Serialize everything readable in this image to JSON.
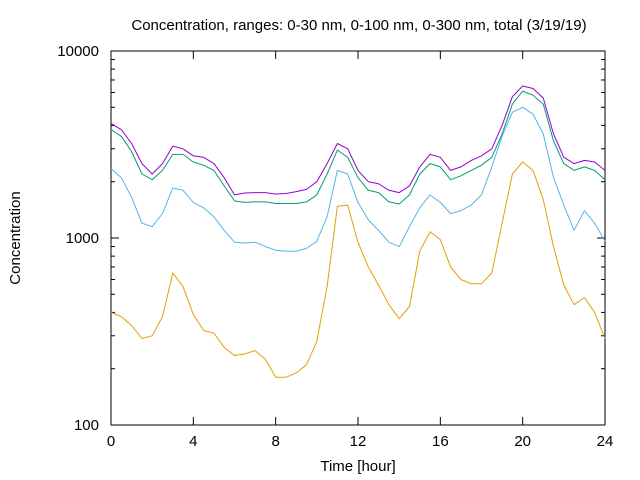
{
  "chart_data": {
    "type": "line",
    "title": "Concentration, ranges: 0-30 nm, 0-100 nm, 0-300 nm, total (3/19/19)",
    "xlabel": "Time [hour]",
    "ylabel": "Concentration",
    "xlim": [
      0,
      24
    ],
    "ylim": [
      100,
      10000
    ],
    "yscale": "log",
    "grid": false,
    "legend": "none",
    "x_ticks": [
      "0",
      "4",
      "8",
      "12",
      "16",
      "20",
      "24"
    ],
    "y_ticks": [
      "100",
      "1000",
      "10000"
    ],
    "x": [
      0,
      0.5,
      1,
      1.5,
      2,
      2.5,
      3,
      3.5,
      4,
      4.5,
      5,
      5.5,
      6,
      6.5,
      7,
      7.5,
      8,
      8.5,
      9,
      9.5,
      10,
      10.5,
      11,
      11.5,
      12,
      12.5,
      13,
      13.5,
      14,
      14.5,
      15,
      15.5,
      16,
      16.5,
      17,
      17.5,
      18,
      18.5,
      19,
      19.5,
      20,
      20.5,
      21,
      21.5,
      22,
      22.5,
      23,
      23.5,
      24
    ],
    "series": [
      {
        "color": "#e69f00",
        "values": [
          400,
          380,
          340,
          290,
          300,
          380,
          650,
          550,
          390,
          320,
          310,
          260,
          235,
          240,
          250,
          225,
          180,
          180,
          190,
          210,
          280,
          550,
          1480,
          1500,
          950,
          700,
          560,
          440,
          370,
          430,
          850,
          1080,
          980,
          700,
          600,
          570,
          570,
          650,
          1200,
          2200,
          2550,
          2300,
          1600,
          900,
          560,
          440,
          480,
          400,
          290
        ]
      },
      {
        "color": "#56b4e9",
        "values": [
          2350,
          2100,
          1650,
          1200,
          1150,
          1350,
          1850,
          1800,
          1550,
          1450,
          1300,
          1100,
          950,
          940,
          950,
          900,
          860,
          850,
          850,
          880,
          960,
          1300,
          2300,
          2200,
          1550,
          1250,
          1100,
          950,
          900,
          1150,
          1450,
          1700,
          1550,
          1350,
          1400,
          1500,
          1700,
          2400,
          3500,
          4700,
          5000,
          4600,
          3600,
          2100,
          1500,
          1100,
          1400,
          1200,
          960
        ]
      },
      {
        "color": "#009e73",
        "values": [
          3800,
          3500,
          2900,
          2200,
          2050,
          2300,
          2800,
          2800,
          2550,
          2450,
          2300,
          1900,
          1580,
          1550,
          1560,
          1560,
          1530,
          1530,
          1530,
          1560,
          1700,
          2200,
          2950,
          2700,
          2100,
          1800,
          1750,
          1560,
          1520,
          1700,
          2200,
          2500,
          2400,
          2050,
          2150,
          2300,
          2450,
          2700,
          3600,
          5200,
          6100,
          5800,
          5200,
          3300,
          2500,
          2300,
          2400,
          2300,
          2050
        ]
      },
      {
        "color": "#9400d3",
        "values": [
          4100,
          3800,
          3200,
          2500,
          2200,
          2500,
          3100,
          3000,
          2750,
          2700,
          2500,
          2100,
          1700,
          1740,
          1750,
          1750,
          1720,
          1730,
          1770,
          1820,
          2000,
          2500,
          3200,
          3000,
          2300,
          2000,
          1950,
          1800,
          1750,
          1900,
          2400,
          2800,
          2700,
          2300,
          2400,
          2600,
          2750,
          3000,
          4000,
          5700,
          6500,
          6300,
          5600,
          3600,
          2700,
          2500,
          2600,
          2550,
          2300
        ]
      }
    ]
  }
}
